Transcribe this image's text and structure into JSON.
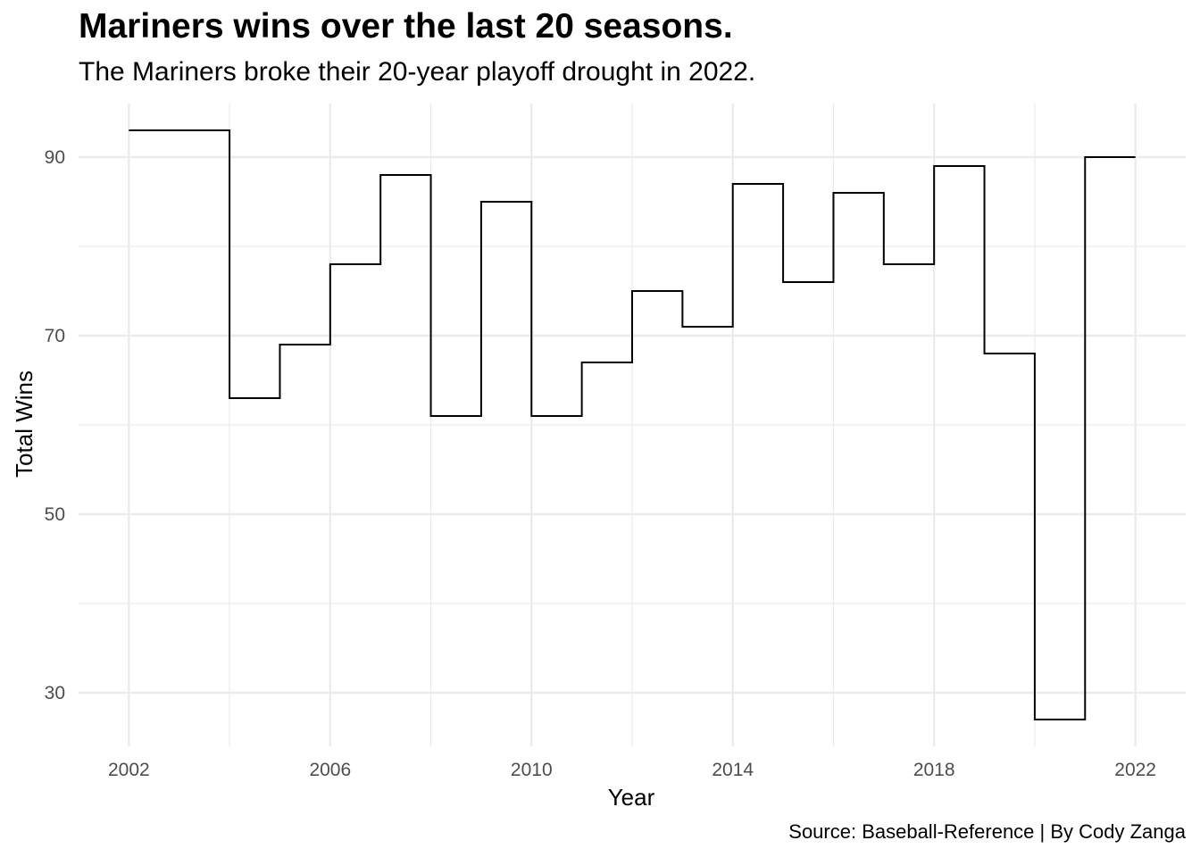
{
  "chart_data": {
    "type": "line",
    "step": true,
    "title": "Mariners wins over the last 20 seasons.",
    "subtitle": "The Mariners broke their 20-year playoff drought in 2022.",
    "caption": "Source: Baseball-Reference | By Cody Zanga",
    "xlabel": "Year",
    "ylabel": "Total Wins",
    "x": [
      2002,
      2003,
      2004,
      2005,
      2006,
      2007,
      2008,
      2009,
      2010,
      2011,
      2012,
      2013,
      2014,
      2015,
      2016,
      2017,
      2018,
      2019,
      2020,
      2021,
      2022
    ],
    "y": [
      93,
      93,
      63,
      69,
      78,
      88,
      61,
      85,
      61,
      67,
      75,
      71,
      87,
      76,
      86,
      78,
      89,
      68,
      27,
      90,
      90
    ],
    "xticks": [
      2002,
      2006,
      2010,
      2014,
      2018,
      2022
    ],
    "yticks": [
      30,
      50,
      70,
      90
    ],
    "xlim": [
      2001,
      2023
    ],
    "ylim": [
      24,
      96
    ],
    "grid": true,
    "line_color": "#000000",
    "grid_color": "#ebebeb"
  }
}
